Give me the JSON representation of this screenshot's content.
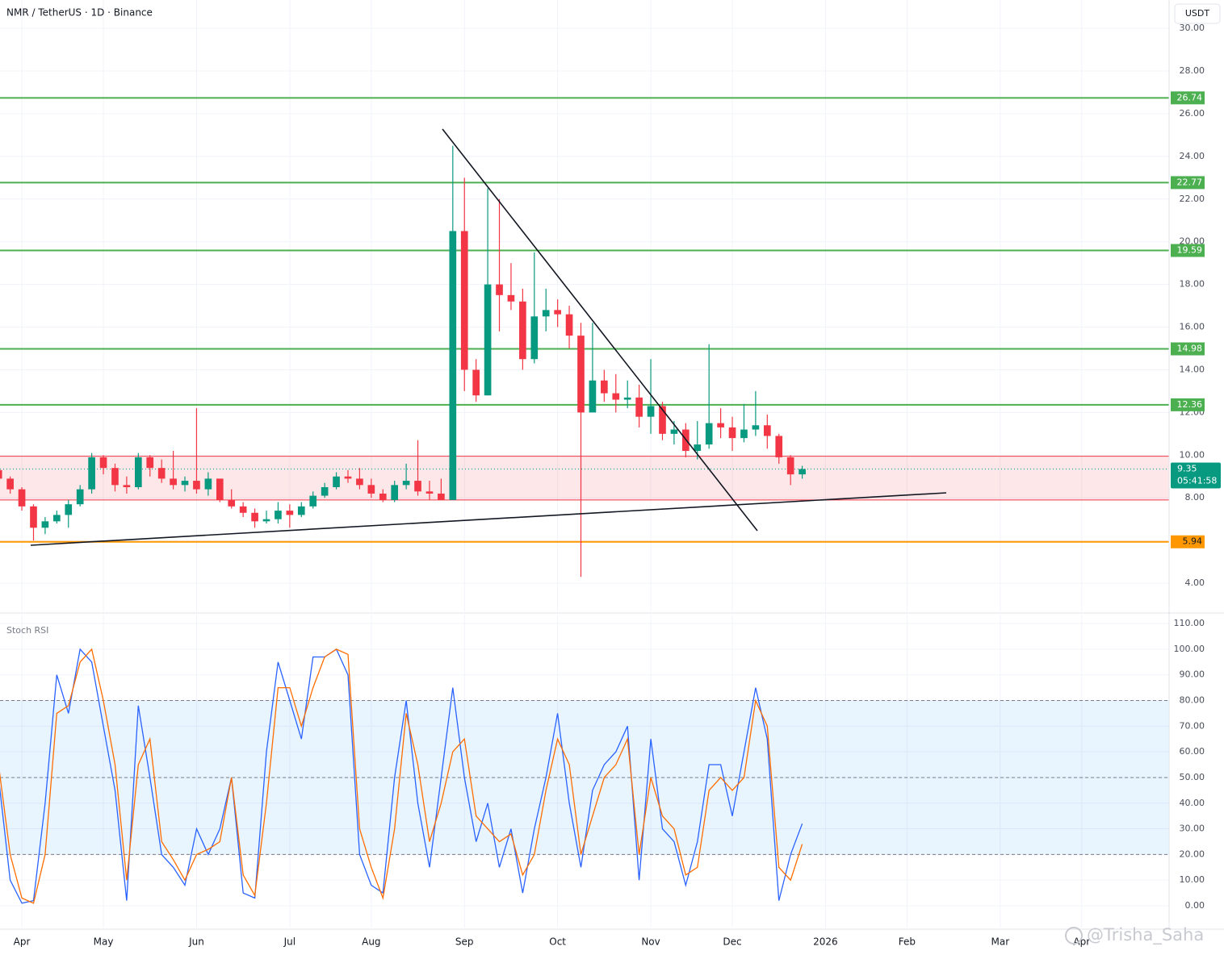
{
  "header": {
    "title": "NMR / TetherUS · 1D · Binance",
    "currency_button": "USDT"
  },
  "chart_data": [
    {
      "type": "candlestick",
      "categories": [
        null,
        null,
        "Apr",
        null,
        null,
        null,
        null,
        null,
        null,
        "May",
        null,
        null,
        null,
        null,
        null,
        null,
        null,
        "Jun",
        null,
        null,
        null,
        null,
        null,
        null,
        null,
        "Jul",
        null,
        null,
        null,
        null,
        null,
        null,
        "Aug",
        null,
        null,
        null,
        null,
        null,
        null,
        null,
        "Sep",
        null,
        null,
        null,
        null,
        null,
        null,
        null,
        "Oct",
        null,
        null,
        null,
        null,
        null,
        null,
        null,
        "Nov",
        null,
        null,
        null,
        null,
        null,
        null,
        "Dec",
        null,
        null,
        null,
        null,
        null,
        null,
        null,
        "2026",
        null,
        null,
        null,
        null,
        null,
        null,
        "Feb",
        null,
        null,
        null,
        null,
        null,
        null,
        null,
        "Mar",
        null,
        null,
        null,
        null,
        null,
        null,
        "Apr",
        null,
        null,
        null,
        null,
        null,
        null,
        null
      ],
      "open": [
        9.3,
        8.9,
        8.4,
        7.6,
        6.6,
        6.9,
        7.2,
        7.7,
        8.4,
        9.9,
        9.4,
        8.6,
        8.5,
        9.9,
        9.4,
        8.9,
        8.6,
        8.8,
        8.4,
        8.9,
        7.9,
        7.6,
        7.3,
        6.9,
        7.0,
        7.4,
        7.2,
        7.6,
        8.1,
        8.5,
        9.0,
        8.9,
        8.6,
        8.2,
        7.9,
        8.6,
        8.8,
        8.3,
        8.2,
        7.9,
        20.5,
        14.0,
        12.8,
        18.0,
        17.5,
        17.2,
        14.5,
        16.5,
        16.8,
        16.6,
        15.6,
        12.0,
        13.5,
        12.9,
        12.6,
        12.7,
        11.8,
        12.3,
        11.0,
        11.2,
        10.2,
        10.5,
        11.5,
        11.3,
        10.8,
        11.2,
        11.4,
        10.9,
        9.9,
        9.1,
        null,
        null,
        null,
        null,
        null,
        null,
        null,
        null,
        null,
        null,
        null,
        null,
        null,
        null,
        null,
        null,
        null,
        null,
        null,
        null,
        null,
        null,
        null,
        null,
        null,
        null,
        null,
        null,
        null,
        null,
        null
      ],
      "high": [
        9.4,
        9.0,
        8.5,
        7.7,
        7.1,
        7.4,
        7.9,
        8.6,
        10.1,
        10.0,
        9.6,
        9.0,
        10.1,
        10.0,
        9.8,
        10.2,
        9.0,
        12.2,
        9.2,
        8.9,
        8.4,
        7.8,
        7.5,
        7.4,
        7.8,
        7.7,
        7.8,
        8.3,
        8.7,
        9.2,
        9.3,
        9.4,
        8.9,
        8.4,
        8.8,
        9.6,
        10.7,
        8.8,
        8.9,
        24.5,
        23.0,
        14.5,
        22.5,
        22.0,
        19.0,
        17.8,
        19.5,
        17.8,
        17.3,
        17.0,
        16.2,
        16.2,
        14.0,
        13.8,
        13.5,
        13.3,
        14.5,
        12.5,
        11.6,
        11.5,
        11.6,
        15.2,
        12.2,
        11.8,
        12.4,
        13.0,
        11.9,
        11.0,
        10.0,
        9.5,
        null,
        null,
        null,
        null,
        null,
        null,
        null,
        null,
        null,
        null,
        null,
        null,
        null,
        null,
        null,
        null,
        null,
        null,
        null,
        null,
        null,
        null,
        null,
        null,
        null,
        null,
        null,
        null,
        null,
        null,
        null
      ],
      "low": [
        8.7,
        8.2,
        7.4,
        6.0,
        6.3,
        6.8,
        6.6,
        7.6,
        8.2,
        9.1,
        8.3,
        8.2,
        8.4,
        9.0,
        8.7,
        8.4,
        8.3,
        8.2,
        8.1,
        7.8,
        7.5,
        7.1,
        6.6,
        6.8,
        6.8,
        6.6,
        7.1,
        7.5,
        8.0,
        8.4,
        8.7,
        8.4,
        8.0,
        7.8,
        7.8,
        8.4,
        8.1,
        7.9,
        7.9,
        7.9,
        13.0,
        12.5,
        12.8,
        15.8,
        16.8,
        14.0,
        14.3,
        15.8,
        16.0,
        15.0,
        4.3,
        12.2,
        12.5,
        12.0,
        12.2,
        11.3,
        11.0,
        10.7,
        10.5,
        9.9,
        9.8,
        10.3,
        10.8,
        10.2,
        10.6,
        10.9,
        10.3,
        9.6,
        8.6,
        8.9,
        null,
        null,
        null,
        null,
        null,
        null,
        null,
        null,
        null,
        null,
        null,
        null,
        null,
        null,
        null,
        null,
        null,
        null,
        null,
        null,
        null,
        null,
        null,
        null,
        null,
        null,
        null,
        null,
        null,
        null,
        null
      ],
      "close": [
        8.9,
        8.4,
        7.6,
        6.6,
        6.9,
        7.2,
        7.7,
        8.4,
        9.9,
        9.4,
        8.6,
        8.5,
        9.9,
        9.4,
        8.9,
        8.6,
        8.8,
        8.4,
        8.9,
        7.9,
        7.6,
        7.3,
        6.9,
        7.0,
        7.4,
        7.2,
        7.6,
        8.1,
        8.5,
        9.0,
        8.9,
        8.6,
        8.2,
        7.9,
        8.6,
        8.8,
        8.3,
        8.2,
        7.9,
        20.5,
        14.0,
        12.8,
        18.0,
        17.5,
        17.2,
        14.5,
        16.5,
        16.8,
        16.6,
        15.6,
        12.0,
        13.5,
        12.9,
        12.6,
        12.7,
        11.8,
        12.3,
        11.0,
        11.2,
        10.2,
        10.5,
        11.5,
        11.3,
        10.8,
        11.2,
        11.4,
        10.9,
        9.9,
        9.1,
        9.35,
        null,
        null,
        null,
        null,
        null,
        null,
        null,
        null,
        null,
        null,
        null,
        null,
        null,
        null,
        null,
        null,
        null,
        null,
        null,
        null,
        null,
        null,
        null,
        null,
        null,
        null,
        null,
        null,
        null,
        null,
        null
      ],
      "up_color": "#089981",
      "down_color": "#f23645",
      "ylim": [
        2.68,
        30.23
      ],
      "yticks": [
        {
          "value": 4,
          "label": "4.00"
        },
        {
          "value": 6,
          "label": "6.00"
        },
        {
          "value": 8,
          "label": "8.00"
        },
        {
          "value": 10,
          "label": "10.00"
        },
        {
          "value": 12,
          "label": "12.00"
        },
        {
          "value": 14,
          "label": "14.00"
        },
        {
          "value": 16,
          "label": "16.00"
        },
        {
          "value": 18,
          "label": "18.00"
        },
        {
          "value": 20,
          "label": "20.00"
        },
        {
          "value": 22,
          "label": "22.00"
        },
        {
          "value": 24,
          "label": "24.00"
        },
        {
          "value": 26,
          "label": "26.00"
        },
        {
          "value": 28,
          "label": "28.00"
        },
        {
          "value": 30,
          "label": "30.00"
        }
      ],
      "grid": true,
      "zone": {
        "low": 7.9,
        "high": 9.95,
        "color": "#f23645"
      },
      "levels": [
        {
          "value": 26.74,
          "color": "#4caf50"
        },
        {
          "value": 22.77,
          "color": "#4caf50"
        },
        {
          "value": 19.59,
          "color": "#4caf50"
        },
        {
          "value": 14.98,
          "color": "#4caf50"
        },
        {
          "value": 12.36,
          "color": "#4caf50"
        },
        {
          "value": 5.94,
          "color": "#ff9800"
        }
      ],
      "last_price": 9.35,
      "last_price_color": "#089981",
      "countdown": "05:41:58"
    },
    {
      "type": "line",
      "title": "Stoch RSI",
      "series": [
        {
          "color": "#2962ff",
          "values": [
            50,
            10,
            1,
            2,
            40,
            90,
            75,
            100,
            95,
            70,
            45,
            2,
            78,
            50,
            20,
            15,
            8,
            30,
            20,
            30,
            50,
            5,
            3,
            60,
            95,
            80,
            65,
            97,
            97,
            100,
            90,
            20,
            8,
            5,
            50,
            80,
            40,
            15,
            50,
            85,
            50,
            25,
            40,
            15,
            30,
            5,
            30,
            50,
            75,
            40,
            15,
            45,
            55,
            60,
            70,
            10,
            65,
            30,
            25,
            8,
            25,
            55,
            55,
            35,
            60,
            85,
            65,
            2,
            20,
            32,
            null,
            null,
            null,
            null,
            null,
            null,
            null,
            null,
            null,
            null,
            null,
            null,
            null,
            null,
            null,
            null,
            null,
            null,
            null,
            null,
            null,
            null,
            null,
            null,
            null,
            null,
            null,
            null,
            null,
            null,
            null
          ]
        },
        {
          "color": "#ff6d00",
          "values": [
            55,
            20,
            3,
            1,
            20,
            75,
            78,
            95,
            100,
            80,
            55,
            10,
            55,
            65,
            25,
            18,
            10,
            20,
            22,
            25,
            50,
            12,
            4,
            40,
            85,
            85,
            70,
            85,
            97,
            100,
            98,
            30,
            15,
            3,
            30,
            75,
            55,
            25,
            40,
            60,
            65,
            35,
            30,
            25,
            28,
            12,
            20,
            45,
            65,
            55,
            20,
            35,
            50,
            55,
            65,
            20,
            50,
            35,
            30,
            12,
            15,
            45,
            50,
            45,
            50,
            80,
            70,
            15,
            10,
            24,
            null,
            null,
            null,
            null,
            null,
            null,
            null,
            null,
            null,
            null,
            null,
            null,
            null,
            null,
            null,
            null,
            null,
            null,
            null,
            null,
            null,
            null,
            null,
            null,
            null,
            null,
            null,
            null,
            null,
            null,
            null
          ]
        }
      ],
      "ylim": [
        -8.5,
        113.5
      ],
      "yticks": [
        {
          "value": 0,
          "label": "0.00"
        },
        {
          "value": 10,
          "label": "10.00"
        },
        {
          "value": 20,
          "label": "20.00"
        },
        {
          "value": 30,
          "label": "30.00"
        },
        {
          "value": 40,
          "label": "40.00"
        },
        {
          "value": 50,
          "label": "50.00"
        },
        {
          "value": 60,
          "label": "60.00"
        },
        {
          "value": 70,
          "label": "70.00"
        },
        {
          "value": 80,
          "label": "80.00"
        },
        {
          "value": 90,
          "label": "90.00"
        },
        {
          "value": 100,
          "label": "100.00"
        },
        {
          "value": 110,
          "label": "110.00"
        }
      ],
      "band": {
        "low": 20,
        "high": 80,
        "color": "#2196f3"
      },
      "hlines": [
        80,
        50,
        20
      ]
    }
  ],
  "watermark": "@Trisha_Saha"
}
